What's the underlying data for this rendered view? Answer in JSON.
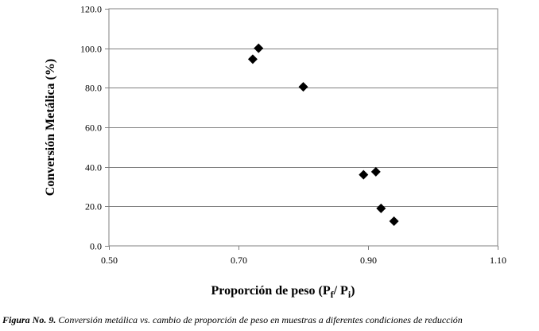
{
  "chart_data": {
    "type": "scatter",
    "title": "",
    "ylabel": "Conversión Metálica (%)",
    "xlabel": {
      "prefix": "Proporción de peso (P",
      "sub1": "f",
      "middle": "/ P",
      "sub2": "i",
      "suffix": ")"
    },
    "xlim": [
      0.5,
      1.1
    ],
    "ylim": [
      0.0,
      120.0
    ],
    "xticks": [
      0.5,
      0.7,
      0.9,
      1.1
    ],
    "xtick_labels": [
      "0.50",
      "0.70",
      "0.90",
      "1.10"
    ],
    "yticks": [
      0,
      20,
      40,
      60,
      80,
      100,
      120
    ],
    "ytick_labels": [
      "0.0",
      "20.0",
      "40.0",
      "60.0",
      "80.0",
      "100.0",
      "120.0"
    ],
    "grid": "horizontal major gridlines",
    "marker": "diamond",
    "series": [
      {
        "name": "",
        "x": [
          0.722,
          0.731,
          0.8,
          0.893,
          0.912,
          0.92,
          0.94
        ],
        "y": [
          94.5,
          100.0,
          80.5,
          36.0,
          37.5,
          19.0,
          12.5
        ]
      }
    ]
  },
  "caption": {
    "lead": "Figura No. 9.",
    "text": " Conversión metálica vs. cambio de proporción de peso en muestras a diferentes condiciones de reducción"
  }
}
